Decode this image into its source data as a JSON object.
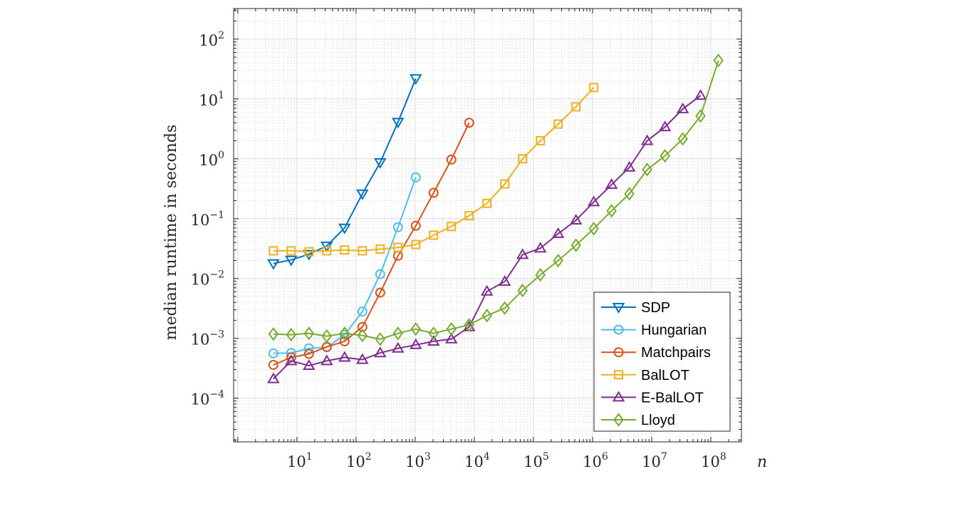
{
  "chart_data": {
    "type": "line",
    "title": "",
    "xlabel": "n",
    "ylabel": "median runtime in seconds",
    "xscale": "log",
    "yscale": "log",
    "xlim": [
      0.85,
      330000000.0
    ],
    "ylim": [
      1.86e-05,
      324
    ],
    "grid": "major and minor",
    "legend_position": "bottom-right",
    "x_ticks": [
      {
        "base": "10",
        "exp": "1",
        "v": 10.0
      },
      {
        "base": "10",
        "exp": "2",
        "v": 100.0
      },
      {
        "base": "10",
        "exp": "3",
        "v": 1000.0
      },
      {
        "base": "10",
        "exp": "4",
        "v": 10000.0
      },
      {
        "base": "10",
        "exp": "5",
        "v": 100000.0
      },
      {
        "base": "10",
        "exp": "6",
        "v": 1000000.0
      },
      {
        "base": "10",
        "exp": "7",
        "v": 10000000.0
      },
      {
        "base": "10",
        "exp": "8",
        "v": 100000000.0
      }
    ],
    "y_ticks": [
      {
        "base": "10",
        "exp": "−4",
        "v": 0.0001
      },
      {
        "base": "10",
        "exp": "−3",
        "v": 0.001
      },
      {
        "base": "10",
        "exp": "−2",
        "v": 0.01
      },
      {
        "base": "10",
        "exp": "−1",
        "v": 0.1
      },
      {
        "base": "10",
        "exp": "0",
        "v": 1
      },
      {
        "base": "10",
        "exp": "1",
        "v": 10
      },
      {
        "base": "10",
        "exp": "2",
        "v": 100
      }
    ],
    "series": [
      {
        "name": "SDP",
        "color": "#0072BD",
        "marker": "triangle-down",
        "x": [
          4,
          8,
          16,
          32,
          64,
          128,
          256,
          512,
          1024
        ],
        "y": [
          0.0178,
          0.0204,
          0.0254,
          0.035,
          0.07,
          0.26,
          0.87,
          4.1,
          22
        ]
      },
      {
        "name": "Hungarian",
        "color": "#4DBEEE",
        "marker": "circle",
        "x": [
          4,
          8,
          16,
          32,
          64,
          128,
          256,
          512,
          1024
        ],
        "y": [
          0.00056,
          0.00057,
          0.00068,
          0.00071,
          0.00115,
          0.0028,
          0.0118,
          0.072,
          0.49
        ]
      },
      {
        "name": "Matchpairs",
        "color": "#D95319",
        "marker": "circle",
        "x": [
          4,
          8,
          16,
          32,
          64,
          128,
          256,
          512,
          1024,
          2048,
          4096,
          8192
        ],
        "y": [
          0.00036,
          0.00048,
          0.00055,
          0.00072,
          0.00089,
          0.00155,
          0.0058,
          0.024,
          0.076,
          0.27,
          0.97,
          4.0
        ]
      },
      {
        "name": "BalLOT",
        "color": "#EDB120",
        "marker": "square",
        "x": [
          4,
          8,
          16,
          32,
          64,
          128,
          256,
          512,
          1024,
          2048,
          4096,
          8192,
          16384,
          32768,
          65536,
          131072,
          262144,
          524288,
          1048576
        ],
        "y": [
          0.029,
          0.029,
          0.028,
          0.029,
          0.03,
          0.029,
          0.031,
          0.033,
          0.037,
          0.053,
          0.074,
          0.112,
          0.18,
          0.38,
          1.0,
          2.0,
          3.8,
          7.4,
          15.5
        ]
      },
      {
        "name": "E-BalLOT",
        "color": "#7E2F8E",
        "marker": "triangle-up",
        "x": [
          4,
          8,
          16,
          32,
          64,
          128,
          256,
          512,
          1024,
          2048,
          4096,
          8192,
          16384,
          32768,
          65536,
          131072,
          262144,
          524288,
          1048576,
          2097152,
          4194304,
          8388608,
          16777216,
          33554432,
          67108864
        ],
        "y": [
          0.00021,
          0.00042,
          0.00035,
          0.00042,
          0.00048,
          0.00044,
          0.00057,
          0.00068,
          0.00078,
          0.00089,
          0.00097,
          0.00155,
          0.0061,
          0.0089,
          0.025,
          0.032,
          0.056,
          0.094,
          0.19,
          0.37,
          0.72,
          2.0,
          3.4,
          6.8,
          11.4
        ]
      },
      {
        "name": "Lloyd",
        "color": "#77AC30",
        "marker": "diamond",
        "x": [
          4,
          8,
          16,
          32,
          64,
          128,
          256,
          512,
          1024,
          2048,
          4096,
          8192,
          16384,
          32768,
          65536,
          131072,
          262144,
          524288,
          1048576,
          2097152,
          4194304,
          8388608,
          16777216,
          33554432,
          67108864,
          134217728
        ],
        "y": [
          0.00118,
          0.00115,
          0.00121,
          0.00109,
          0.00121,
          0.00112,
          0.00097,
          0.00121,
          0.00143,
          0.00121,
          0.00143,
          0.00168,
          0.0024,
          0.0032,
          0.0063,
          0.0115,
          0.0199,
          0.036,
          0.068,
          0.135,
          0.26,
          0.66,
          1.12,
          2.15,
          5.2,
          44
        ]
      }
    ]
  }
}
